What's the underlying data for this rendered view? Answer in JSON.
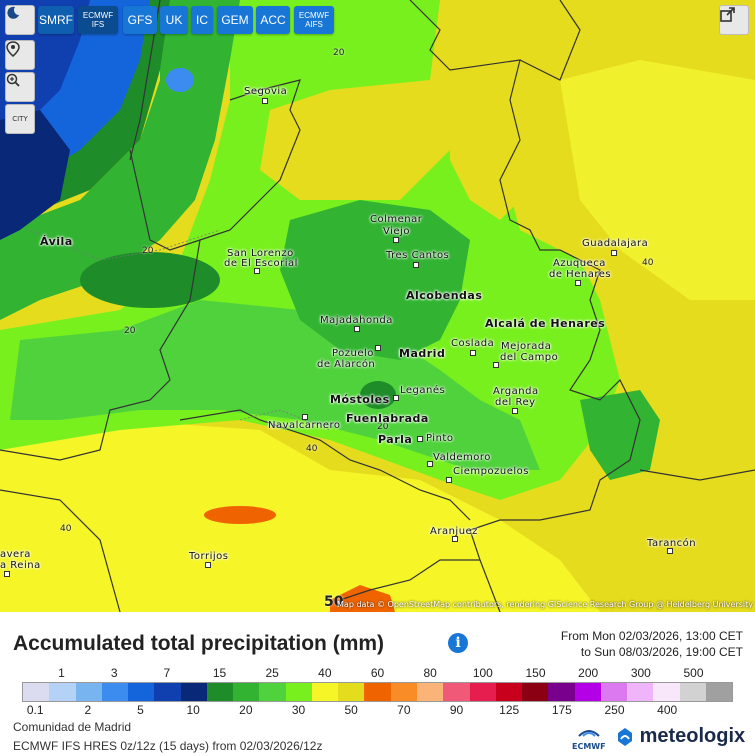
{
  "toolbar": {
    "buttons": [
      {
        "label": "SMRF",
        "sub": ""
      },
      {
        "label": "ECMWF",
        "sub": "IFS"
      },
      {
        "label": "GFS",
        "sub": ""
      },
      {
        "label": "UK",
        "sub": ""
      },
      {
        "label": "IC",
        "sub": ""
      },
      {
        "label": "GEM",
        "sub": ""
      },
      {
        "label": "ACC",
        "sub": ""
      },
      {
        "label": "ECMWF",
        "sub": "AIFS"
      }
    ],
    "city_label": "CITY"
  },
  "map": {
    "attribution": "Map data © OpenStreetMap contributors, rendering GIScience Research Group @ Heidelberg University",
    "cities": [
      {
        "name": "Segovia",
        "big": false
      },
      {
        "name": "Ávila",
        "big": true
      },
      {
        "name": "San Lorenzo",
        "name2": "de El Escorial",
        "big": false
      },
      {
        "name": "Colmenar",
        "name2": "Viejo",
        "big": false
      },
      {
        "name": "Tres Cantos",
        "big": false
      },
      {
        "name": "Guadalajara",
        "big": false
      },
      {
        "name": "Azuqueca",
        "name2": "de Henares",
        "big": false
      },
      {
        "name": "Alcobendas",
        "big": true
      },
      {
        "name": "Majadahonda",
        "big": false
      },
      {
        "name": "Alcalá de Henares",
        "big": true
      },
      {
        "name": "Pozuelo",
        "name2": "de Alarcón",
        "big": false
      },
      {
        "name": "Madrid",
        "big": true
      },
      {
        "name": "Coslada",
        "big": false
      },
      {
        "name": "Mejorada",
        "name2": "del Campo",
        "big": false
      },
      {
        "name": "Leganés",
        "big": false
      },
      {
        "name": "Arganda",
        "name2": "del Rey",
        "big": false
      },
      {
        "name": "Móstoles",
        "big": true
      },
      {
        "name": "Fuenlabrada",
        "big": true
      },
      {
        "name": "Navalcarnero",
        "big": false
      },
      {
        "name": "Parla",
        "big": true
      },
      {
        "name": "Pinto",
        "big": false
      },
      {
        "name": "Valdemoro",
        "big": false
      },
      {
        "name": "Ciempozuelos",
        "big": false
      },
      {
        "name": "Aranjuez",
        "big": false
      },
      {
        "name": "Torrijos",
        "big": false
      },
      {
        "name": "Tarancón",
        "big": false
      },
      {
        "name": "avera",
        "name2": "a Reina",
        "big": false
      }
    ],
    "isolines": [
      "20",
      "20",
      "20",
      "20",
      "40",
      "40",
      "40",
      "20",
      "50"
    ]
  },
  "header": {
    "title": "Accumulated total precipitation (mm)",
    "period_from": "From Mon 02/03/2026, 13:00 CET",
    "period_to": "to Sun 08/03/2026, 19:00 CET"
  },
  "legend": {
    "colors": [
      "#dcdcf0",
      "#b4d2f5",
      "#78b4f0",
      "#3c8cf0",
      "#1464dc",
      "#1040b0",
      "#0a2878",
      "#1e8c28",
      "#32b432",
      "#50d23c",
      "#78f01e",
      "#f5f528",
      "#e6dc1e",
      "#f06400",
      "#fa8c28",
      "#fab478",
      "#f05a78",
      "#e61e50",
      "#c8001e",
      "#8c0014",
      "#78008c",
      "#b400e6",
      "#dc78f0",
      "#f0b4fa",
      "#f8e6fa",
      "#d2d2d2",
      "#a0a0a0"
    ],
    "top_labels": [
      "1",
      "3",
      "7",
      "15",
      "25",
      "40",
      "60",
      "80",
      "100",
      "150",
      "200",
      "300",
      "500"
    ],
    "bottom_labels": [
      "0.1",
      "2",
      "5",
      "10",
      "20",
      "30",
      "50",
      "70",
      "90",
      "125",
      "175",
      "250",
      "400"
    ]
  },
  "footer": {
    "region": "Comunidad de Madrid",
    "model_run": "ECMWF IFS HRES 0z/12z  (15 days)  from 02/03/2026/12z",
    "ecmwf_logo": "ECMWF",
    "brand": "meteologix"
  }
}
